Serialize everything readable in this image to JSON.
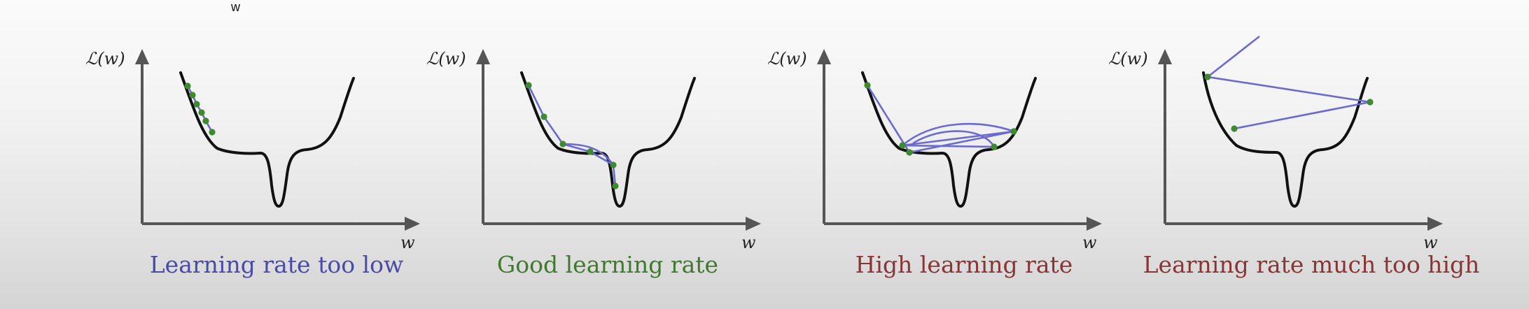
{
  "stray_label": "w",
  "colors": {
    "title_low": "#4a4aa8",
    "title_good": "#3f7a2f",
    "title_high": "#8a3535",
    "title_much_high": "#8a3535"
  },
  "panels": [
    {
      "ylabel": "ℒ(w)",
      "xlabel": "w",
      "title": "Learning rate too low",
      "title_color_key": "title_low"
    },
    {
      "ylabel": "ℒ(w)",
      "xlabel": "w",
      "title": "Good learning rate",
      "title_color_key": "title_good"
    },
    {
      "ylabel": "ℒ(w)",
      "xlabel": "w",
      "title": "High learning rate",
      "title_color_key": "title_high"
    },
    {
      "ylabel": "ℒ(w)",
      "xlabel": "w",
      "title": "Learning rate much too high",
      "title_color_key": "title_much_high"
    }
  ]
}
